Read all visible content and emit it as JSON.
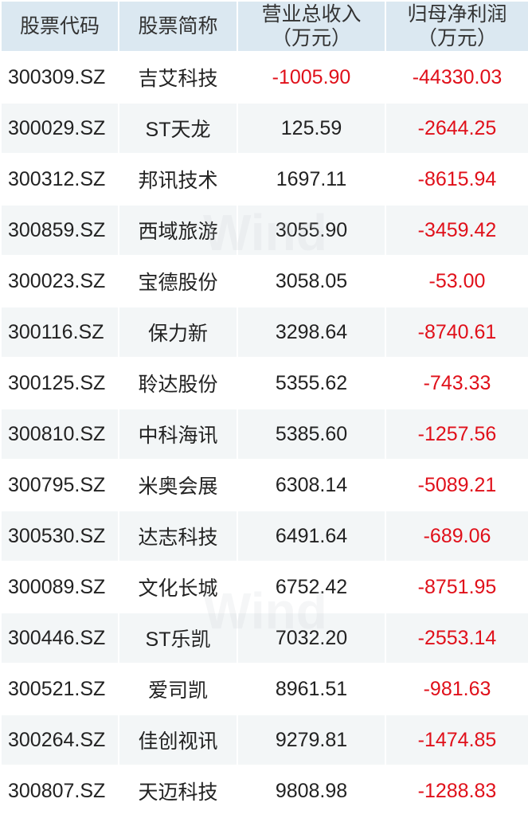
{
  "watermark": "Wind",
  "colors": {
    "header_bg": "#dbe8f1",
    "negative": "#e0101a",
    "alt_row": "#f3f6f7"
  },
  "headers": [
    "股票代码",
    "股票简称",
    "营业总收入\n(万元)",
    "归母净利润\n(万元)"
  ],
  "header_lines": [
    [
      "股票代码"
    ],
    [
      "股票简称"
    ],
    [
      "营业总收入",
      "（万元）"
    ],
    [
      "归母净利润",
      "（万元）"
    ]
  ],
  "rows": [
    {
      "code": "300309.SZ",
      "name": "吉艾科技",
      "revenue": "-1005.90",
      "profit": "-44330.03"
    },
    {
      "code": "300029.SZ",
      "name": "ST天龙",
      "revenue": "125.59",
      "profit": "-2644.25"
    },
    {
      "code": "300312.SZ",
      "name": "邦讯技术",
      "revenue": "1697.11",
      "profit": "-8615.94"
    },
    {
      "code": "300859.SZ",
      "name": "西域旅游",
      "revenue": "3055.90",
      "profit": "-3459.42"
    },
    {
      "code": "300023.SZ",
      "name": "宝德股份",
      "revenue": "3058.05",
      "profit": "-53.00"
    },
    {
      "code": "300116.SZ",
      "name": "保力新",
      "revenue": "3298.64",
      "profit": "-8740.61"
    },
    {
      "code": "300125.SZ",
      "name": "聆达股份",
      "revenue": "5355.62",
      "profit": "-743.33"
    },
    {
      "code": "300810.SZ",
      "name": "中科海讯",
      "revenue": "5385.60",
      "profit": "-1257.56"
    },
    {
      "code": "300795.SZ",
      "name": "米奥会展",
      "revenue": "6308.14",
      "profit": "-5089.21"
    },
    {
      "code": "300530.SZ",
      "name": "达志科技",
      "revenue": "6491.64",
      "profit": "-689.06"
    },
    {
      "code": "300089.SZ",
      "name": "文化长城",
      "revenue": "6752.42",
      "profit": "-8751.95"
    },
    {
      "code": "300446.SZ",
      "name": "ST乐凯",
      "revenue": "7032.20",
      "profit": "-2553.14"
    },
    {
      "code": "300521.SZ",
      "name": "爱司凯",
      "revenue": "8961.51",
      "profit": "-981.63"
    },
    {
      "code": "300264.SZ",
      "name": "佳创视讯",
      "revenue": "9279.81",
      "profit": "-1474.85"
    },
    {
      "code": "300807.SZ",
      "name": "天迈科技",
      "revenue": "9808.98",
      "profit": "-1288.83"
    }
  ]
}
